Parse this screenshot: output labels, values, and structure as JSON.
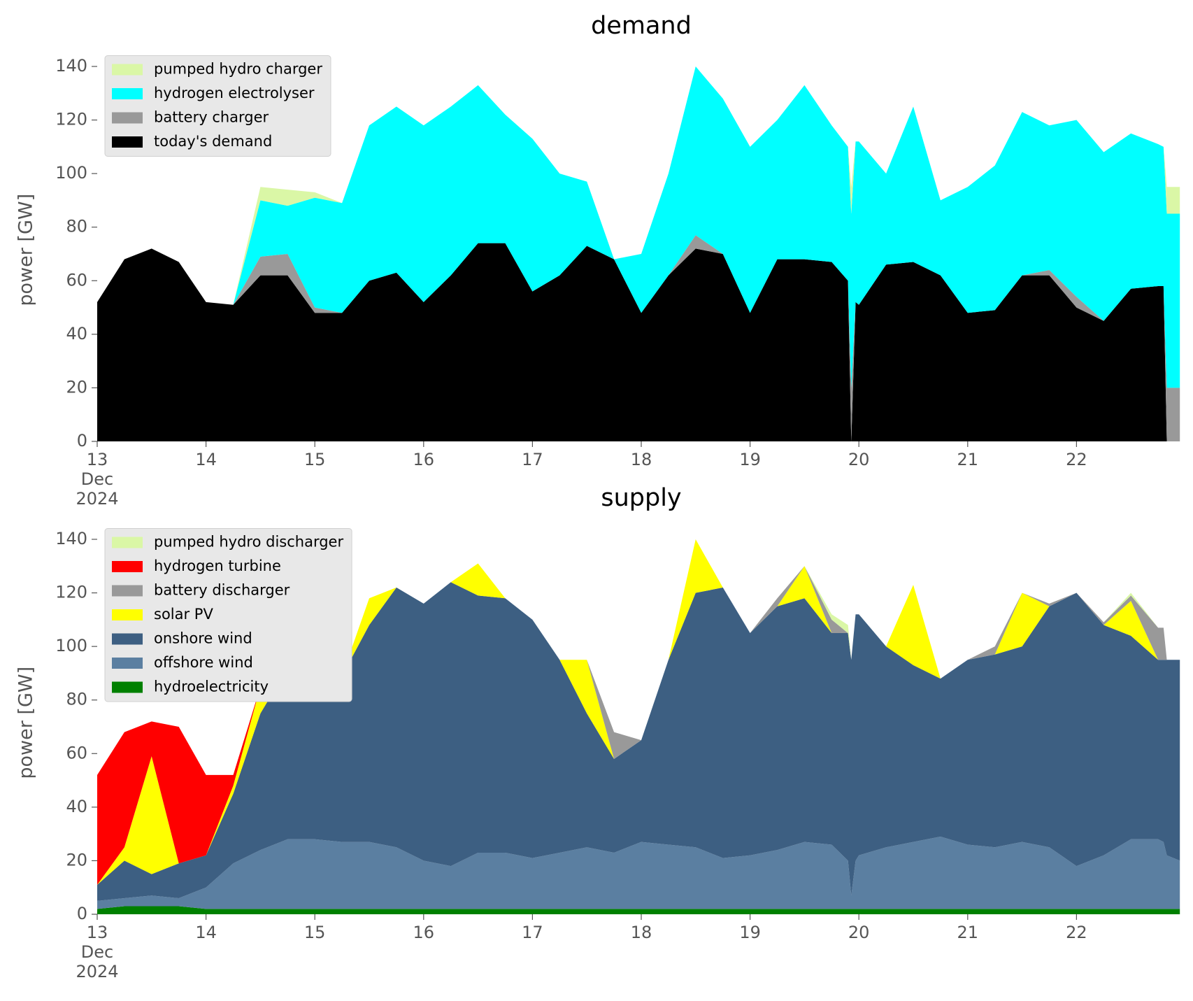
{
  "chart_data": [
    {
      "type": "stacked_area",
      "title": "demand",
      "ylabel": "power [GW]",
      "legend": "upper left",
      "x": [
        13,
        13.25,
        13.5,
        13.75,
        14,
        14.25,
        14.5,
        14.75,
        15,
        15.25,
        15.5,
        15.75,
        16,
        16.25,
        16.5,
        16.75,
        17,
        17.25,
        17.5,
        17.75,
        18,
        18.25,
        18.5,
        18.75,
        19,
        19.25,
        19.5,
        19.75,
        19.9,
        19.93,
        19.97,
        20,
        20.25,
        20.5,
        20.75,
        21,
        21.25,
        21.5,
        21.75,
        22,
        22.25,
        22.5,
        22.75,
        22.8,
        22.83,
        22.95
      ],
      "xlim": [
        13,
        23
      ],
      "xticks": [
        {
          "value": 13,
          "label": "13\nDec\n2024"
        },
        14,
        15,
        16,
        17,
        18,
        19,
        20,
        21,
        22
      ],
      "ylim": [
        0,
        143
      ],
      "yticks": [
        0,
        20,
        40,
        60,
        80,
        100,
        120,
        140
      ],
      "series": [
        {
          "name": "today's demand",
          "color": "#000000",
          "values": [
            52,
            68,
            72,
            67,
            52,
            51,
            62,
            62,
            48,
            48,
            60,
            63,
            52,
            62,
            74,
            74,
            56,
            62,
            73,
            68,
            48,
            62,
            72,
            70,
            48,
            68,
            68,
            67,
            60,
            0,
            52,
            51,
            66,
            67,
            62,
            48,
            49,
            62,
            62,
            50,
            45,
            57,
            58,
            58,
            0,
            0
          ]
        },
        {
          "name": "battery charger",
          "color": "#999999",
          "values": [
            0,
            0,
            0,
            0,
            0,
            0,
            7,
            8,
            2,
            0,
            0,
            0,
            0,
            0,
            0,
            0,
            0,
            0,
            0,
            0,
            0,
            0,
            5,
            0,
            0,
            0,
            0,
            0,
            0,
            20,
            0,
            0,
            0,
            0,
            0,
            0,
            0,
            0,
            2,
            4,
            0,
            0,
            0,
            0,
            20,
            20
          ]
        },
        {
          "name": "hydrogen electrolyser",
          "color": "#00ffff",
          "values": [
            0,
            0,
            0,
            0,
            0,
            0,
            21,
            18,
            41,
            41,
            58,
            62,
            66,
            63,
            59,
            48,
            57,
            38,
            24,
            0,
            22,
            38,
            63,
            58,
            62,
            52,
            65,
            51,
            50,
            65,
            60,
            61,
            34,
            58,
            28,
            47,
            54,
            61,
            54,
            66,
            63,
            58,
            53,
            52,
            65,
            65
          ]
        },
        {
          "name": "pumped hydro charger",
          "color": "#daf7a6",
          "values": [
            0,
            0,
            0,
            0,
            0,
            0,
            5,
            6,
            2,
            0,
            0,
            0,
            0,
            0,
            0,
            0,
            0,
            0,
            0,
            0,
            0,
            0,
            0,
            0,
            0,
            0,
            0,
            0,
            0,
            10,
            0,
            0,
            0,
            0,
            0,
            0,
            0,
            0,
            0,
            0,
            0,
            0,
            0,
            0,
            10,
            10
          ]
        }
      ]
    },
    {
      "type": "stacked_area",
      "title": "supply",
      "ylabel": "power [GW]",
      "legend": "upper left",
      "x": [
        13,
        13.25,
        13.5,
        13.75,
        14,
        14.25,
        14.5,
        14.75,
        15,
        15.25,
        15.5,
        15.75,
        16,
        16.25,
        16.5,
        16.75,
        17,
        17.25,
        17.5,
        17.75,
        18,
        18.25,
        18.5,
        18.75,
        19,
        19.25,
        19.5,
        19.75,
        19.9,
        19.93,
        19.97,
        20,
        20.25,
        20.5,
        20.75,
        21,
        21.25,
        21.5,
        21.75,
        22,
        22.25,
        22.5,
        22.75,
        22.8,
        22.83,
        22.95
      ],
      "xlim": [
        13,
        23
      ],
      "xticks": [
        {
          "value": 13,
          "label": "13\nDec\n2024"
        },
        14,
        15,
        16,
        17,
        18,
        19,
        20,
        21,
        22
      ],
      "ylim": [
        0,
        143
      ],
      "yticks": [
        0,
        20,
        40,
        60,
        80,
        100,
        120,
        140
      ],
      "series": [
        {
          "name": "hydroelectricity",
          "color": "#008000",
          "values": [
            2,
            3,
            3,
            3,
            2,
            2,
            2,
            2,
            2,
            2,
            2,
            2,
            2,
            2,
            2,
            2,
            2,
            2,
            2,
            2,
            2,
            2,
            2,
            2,
            2,
            2,
            2,
            2,
            2,
            2,
            2,
            2,
            2,
            2,
            2,
            2,
            2,
            2,
            2,
            2,
            2,
            2,
            2,
            2,
            2,
            2
          ]
        },
        {
          "name": "offshore wind",
          "color": "#5b7fa1",
          "values": [
            3,
            3,
            4,
            3,
            8,
            17,
            22,
            26,
            26,
            25,
            25,
            23,
            18,
            16,
            21,
            21,
            19,
            21,
            23,
            21,
            25,
            24,
            23,
            19,
            20,
            22,
            25,
            24,
            18,
            5,
            18,
            20,
            23,
            25,
            27,
            24,
            23,
            25,
            23,
            16,
            20,
            26,
            26,
            25,
            20,
            18
          ]
        },
        {
          "name": "onshore wind",
          "color": "#3d5f82",
          "values": [
            6,
            14,
            8,
            13,
            12,
            26,
            51,
            64,
            64,
            62,
            81,
            97,
            96,
            106,
            96,
            95,
            89,
            72,
            50,
            35,
            38,
            69,
            95,
            101,
            83,
            91,
            91,
            79,
            85,
            88,
            92,
            90,
            75,
            66,
            59,
            69,
            72,
            73,
            90,
            102,
            86,
            76,
            67,
            68,
            73,
            75
          ]
        },
        {
          "name": "solar PV",
          "color": "#ffff00",
          "values": [
            0,
            5,
            44,
            0,
            0,
            3,
            10,
            0,
            0,
            0,
            10,
            0,
            0,
            0,
            12,
            0,
            0,
            0,
            20,
            0,
            0,
            0,
            20,
            0,
            0,
            0,
            12,
            0,
            0,
            0,
            0,
            0,
            0,
            30,
            0,
            0,
            0,
            20,
            0,
            0,
            0,
            13,
            0,
            0,
            0,
            0
          ]
        },
        {
          "name": "battery discharger",
          "color": "#999999",
          "values": [
            0,
            0,
            0,
            0,
            0,
            0,
            0,
            0,
            0,
            0,
            0,
            0,
            0,
            0,
            0,
            0,
            0,
            0,
            0,
            10,
            0,
            0,
            0,
            0,
            0,
            3,
            0,
            5,
            0,
            0,
            0,
            0,
            0,
            0,
            0,
            0,
            3,
            0,
            1,
            0,
            1,
            2,
            12,
            12,
            0,
            0
          ]
        },
        {
          "name": "hydrogen turbine",
          "color": "#ff0000",
          "values": [
            41,
            43,
            13,
            51,
            30,
            4,
            0,
            0,
            0,
            0,
            0,
            0,
            0,
            0,
            0,
            0,
            0,
            0,
            0,
            0,
            0,
            0,
            0,
            0,
            0,
            0,
            0,
            0,
            0,
            0,
            0,
            0,
            0,
            0,
            0,
            0,
            0,
            0,
            0,
            0,
            0,
            0,
            0,
            0,
            0,
            0
          ]
        },
        {
          "name": "pumped hydro discharger",
          "color": "#daf7a6",
          "values": [
            0,
            0,
            0,
            0,
            0,
            0,
            0,
            0,
            0,
            0,
            0,
            0,
            0,
            0,
            0,
            0,
            0,
            0,
            0,
            0,
            0,
            0,
            0,
            0,
            0,
            0,
            0,
            2,
            3,
            0,
            0,
            0,
            0,
            0,
            0,
            0,
            0,
            0,
            0,
            0,
            0,
            1,
            0,
            0,
            0,
            0
          ]
        }
      ]
    }
  ]
}
